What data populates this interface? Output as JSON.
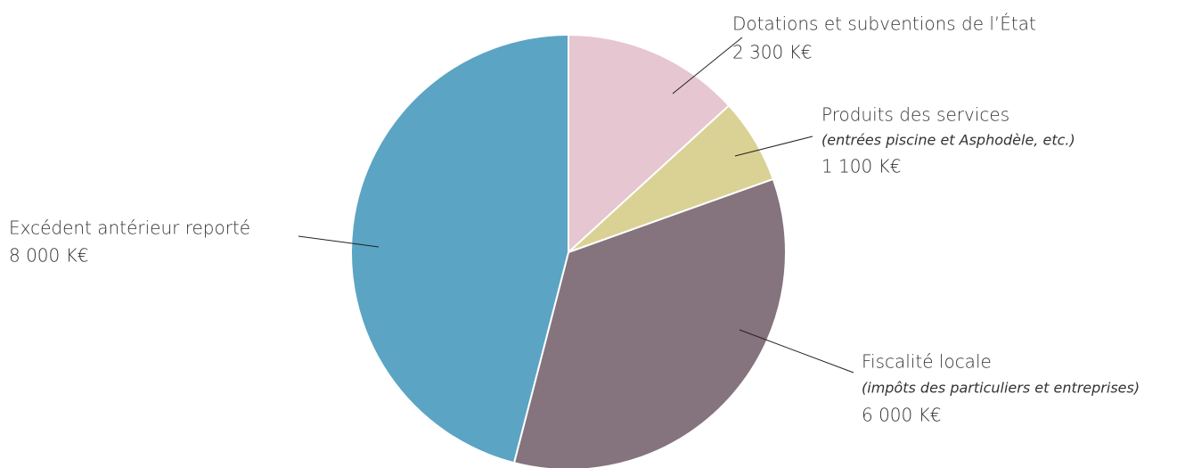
{
  "chart_data": {
    "type": "pie",
    "series": [
      {
        "name": "Dotations et subventions de l’État",
        "values": [
          2300
        ],
        "value_labels": [
          "2 300 K€"
        ],
        "color": "#e6c6d0"
      },
      {
        "name": "Produits des services",
        "note": "(entrées piscine et Asphodèle, etc.)",
        "values": [
          1100
        ],
        "value_labels": [
          "1 100 K€"
        ],
        "color": "#d9d294"
      },
      {
        "name": "Fiscalité locale",
        "note": "(impôts des particuliers et entreprises)",
        "values": [
          6000
        ],
        "value_labels": [
          "6 000 K€"
        ],
        "color": "#85737d"
      },
      {
        "name": "Excédent antérieur reporté",
        "values": [
          8000
        ],
        "value_labels": [
          "8 000 K€"
        ],
        "color": "#5ba4c4"
      }
    ]
  }
}
